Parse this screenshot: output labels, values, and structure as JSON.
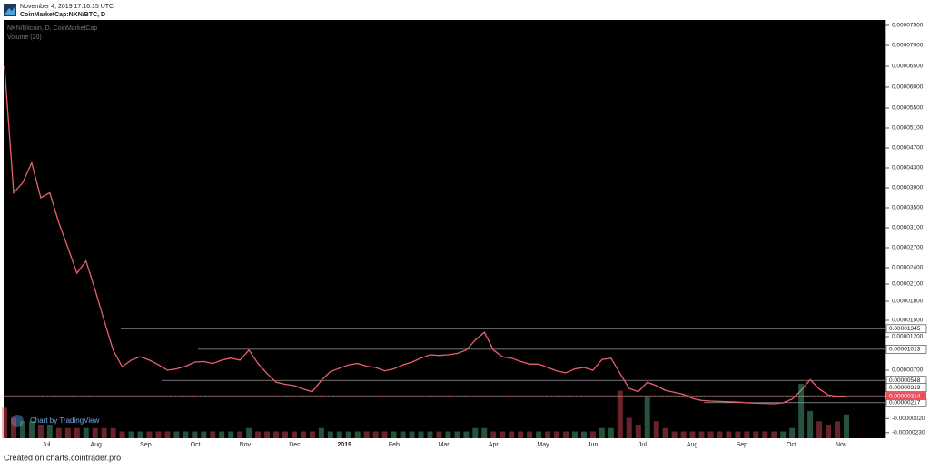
{
  "chart_data": {
    "type": "line",
    "timestamp": "November 4, 2019 17:16:15 UTC",
    "symbol": "CoinMarketCap:NKN/BTC, D",
    "title": "NKN/Bitcoin, D, CoinMarketCap",
    "volume_label": "Volume (20)",
    "branding": "Chart by TradingView",
    "footer": "Created on charts.cointrader.pro",
    "xticks": [
      "Jul",
      "Aug",
      "Sep",
      "Oct",
      "Nov",
      "Dec",
      "2019",
      "Feb",
      "Mar",
      "Apr",
      "May",
      "Jun",
      "Jul",
      "Aug",
      "Sep",
      "Oct",
      "Nov"
    ],
    "yticks": [
      {
        "value": 7.5e-05,
        "label": "0.00007500"
      },
      {
        "value": 7e-05,
        "label": "0.00007000"
      },
      {
        "value": 6.5e-05,
        "label": "0.00006500"
      },
      {
        "value": 6e-05,
        "label": "0.00006000"
      },
      {
        "value": 5.5e-05,
        "label": "0.00005500"
      },
      {
        "value": 5.1e-05,
        "label": "0.00005100"
      },
      {
        "value": 4.7e-05,
        "label": "0.00004700"
      },
      {
        "value": 4.3e-05,
        "label": "0.00004300"
      },
      {
        "value": 3.9e-05,
        "label": "0.00003900"
      },
      {
        "value": 3.5e-05,
        "label": "0.00003500"
      },
      {
        "value": 3.1e-05,
        "label": "0.00003100"
      },
      {
        "value": 2.7e-05,
        "label": "0.00002700"
      },
      {
        "value": 2.4e-05,
        "label": "0.00002400"
      },
      {
        "value": 2.1e-05,
        "label": "0.00002100"
      },
      {
        "value": 1.8e-05,
        "label": "0.00001800"
      },
      {
        "value": 1.5e-05,
        "label": "0.00001500"
      },
      {
        "value": 1.2e-05,
        "label": "0.00001200"
      },
      {
        "value": 7e-06,
        "label": "0.00000700"
      },
      {
        "value": -2e-07,
        "label": "-0.00000020"
      },
      {
        "value": -2.3e-06,
        "label": "-0.00000230"
      }
    ],
    "levels": [
      {
        "value": 1.345e-05,
        "label": "0.00001345"
      },
      {
        "value": 1.013e-05,
        "label": "0.00001013"
      },
      {
        "value": 5.48e-06,
        "label": "0.00000548"
      },
      {
        "value": 3.19e-06,
        "label": "0.00000319"
      },
      {
        "value": 2.17e-06,
        "label": "0.00000217"
      }
    ],
    "last_price": {
      "value": 3.14e-06,
      "label": "0.00000314",
      "color": "#eb4d5c"
    },
    "series": [
      {
        "name": "NKN/BTC",
        "color": "#e8606c",
        "values": [
          6.5e-05,
          3.8e-05,
          4e-05,
          4.4e-05,
          3.7e-05,
          3.8e-05,
          3.2e-05,
          2.7e-05,
          2.3e-05,
          2.5e-05,
          2e-05,
          1.5e-05,
          1e-05,
          7.5e-06,
          8.5e-06,
          9e-06,
          8.5e-06,
          7.8e-06,
          7e-06,
          7.2e-06,
          7.6e-06,
          8.2e-06,
          8.3e-06,
          8e-06,
          8.5e-06,
          8.8e-06,
          8.5e-06,
          1e-05,
          8e-06,
          6.5e-06,
          5.2e-06,
          4.9e-06,
          4.7e-06,
          4.2e-06,
          3.8e-06,
          5.5e-06,
          6.8e-06,
          7.3e-06,
          7.8e-06,
          8e-06,
          7.6e-06,
          7.4e-06,
          6.9e-06,
          7.2e-06,
          7.8e-06,
          8.2e-06,
          8.8e-06,
          9.3e-06,
          9.2e-06,
          9.3e-06,
          9.5e-06,
          1e-05,
          1.15e-05,
          1.28e-05,
          1e-05,
          9e-06,
          8.8e-06,
          8.3e-06,
          7.9e-06,
          7.9e-06,
          7.4e-06,
          6.9e-06,
          6.6e-06,
          7.2e-06,
          7.4e-06,
          7e-06,
          8.6e-06,
          8.8e-06,
          6.5e-06,
          4.3e-06,
          3.8e-06,
          5.2e-06,
          4.7e-06,
          4e-06,
          3.7e-06,
          3.4e-06,
          2.8e-06,
          2.5e-06,
          2.4e-06,
          2.35e-06,
          2.3e-06,
          2.25e-06,
          2.15e-06,
          2.1e-06,
          2.05e-06,
          2e-06,
          2.15e-06,
          2.7e-06,
          4e-06,
          5.6e-06,
          4.2e-06,
          3.3e-06,
          3.1e-06,
          3.14e-06
        ]
      }
    ],
    "volume": [
      9,
      6,
      5,
      5,
      4,
      4,
      3,
      3,
      3,
      3,
      3,
      3,
      3,
      2,
      2,
      2,
      2,
      2,
      2,
      2,
      2,
      2,
      2,
      2,
      2,
      2,
      2,
      3,
      2,
      2,
      2,
      2,
      2,
      2,
      2,
      3,
      2,
      2,
      2,
      2,
      2,
      2,
      2,
      2,
      2,
      2,
      2,
      2,
      2,
      2,
      2,
      2,
      3,
      3,
      2,
      2,
      2,
      2,
      2,
      2,
      2,
      2,
      2,
      2,
      2,
      2,
      3,
      3,
      14,
      6,
      4,
      12,
      5,
      3,
      2,
      2,
      2,
      2,
      2,
      2,
      2,
      2,
      2,
      2,
      2,
      2,
      2,
      3,
      16,
      8,
      5,
      4,
      5,
      7
    ],
    "up_color": "#53b987",
    "down_color": "#eb4d5c"
  }
}
